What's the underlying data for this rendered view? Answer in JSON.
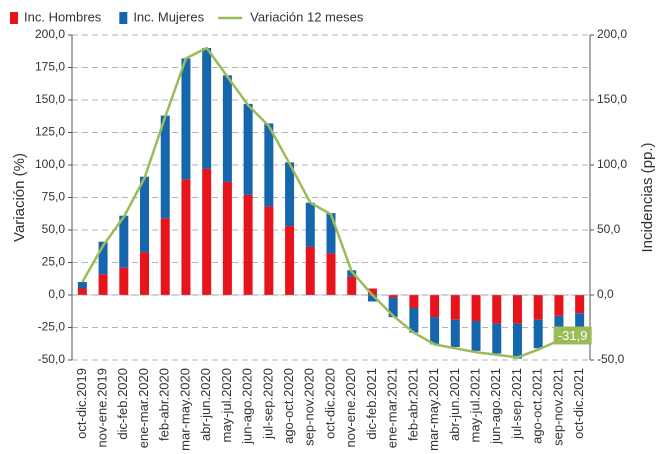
{
  "chart_data": {
    "type": "bar-line",
    "y_label": "Variación (%)",
    "y2_label": "Incidencias (pp.)",
    "categories": [
      "oct-dic.2019",
      "nov-ene.2019",
      "dic-feb.2020",
      "ene-mar.2020",
      "feb-abr.2020",
      "mar-may.2020",
      "abr-jun.2020",
      "may-jul.2020",
      "jun-ago.2020",
      "jul-sep.2020",
      "ago-oct.2020",
      "sep-nov.2020",
      "oct-dic.2020",
      "nov-ene.2020",
      "dic-feb.2021",
      "ene-mar.2021",
      "feb-abr.2021",
      "mar-may.2021",
      "abr-jun.2021",
      "may-jul.2021",
      "jun-ago.2021",
      "jul-sep.2021",
      "ago-oct.2021",
      "sep-nov.2021",
      "oct-dic.2021"
    ],
    "series": [
      {
        "name": "Inc. Hombres",
        "color": "#e8141c",
        "axis": "y2",
        "kind": "bar",
        "values": [
          5,
          16,
          21,
          33,
          59,
          89,
          97,
          87,
          77,
          68,
          53,
          37,
          32,
          14,
          5,
          -2,
          -10,
          -17,
          -19,
          -20,
          -22,
          -22,
          -19,
          -16,
          -14
        ]
      },
      {
        "name": "Inc. Mujeres",
        "color": "#1666ae",
        "axis": "y2",
        "kind": "bar",
        "values": [
          5,
          25,
          40,
          58,
          79,
          93,
          93,
          82,
          70,
          64,
          49,
          34,
          31,
          5,
          -5,
          -15,
          -19,
          -21,
          -21,
          -23,
          -23,
          -27,
          -22,
          -15,
          -17
        ]
      },
      {
        "name": "Variación 12 meses",
        "color": "#9bbb59",
        "axis": "y",
        "kind": "line",
        "values": [
          10,
          38,
          60,
          90,
          137,
          182,
          190,
          168,
          146,
          130,
          101,
          71,
          62,
          18,
          0,
          -16,
          -29,
          -38,
          -41,
          -44,
          -46,
          -48,
          -42,
          -35,
          -31.9
        ],
        "value_labels": [
          null,
          null,
          null,
          null,
          null,
          null,
          null,
          null,
          null,
          null,
          null,
          null,
          null,
          null,
          null,
          null,
          null,
          null,
          null,
          null,
          null,
          null,
          null,
          null,
          "-31,9"
        ]
      }
    ],
    "ylim": [
      -50,
      200
    ],
    "yticks": [
      {
        "value": -50,
        "label": "-50,0"
      },
      {
        "value": -25,
        "label": "-25,0"
      },
      {
        "value": 0,
        "label": "0,0"
      },
      {
        "value": 25,
        "label": "25,0"
      },
      {
        "value": 50,
        "label": "50,0"
      },
      {
        "value": 75,
        "label": "75,0"
      },
      {
        "value": 100,
        "label": "100,0"
      },
      {
        "value": 125,
        "label": "125,0"
      },
      {
        "value": 150,
        "label": "150,0"
      },
      {
        "value": 175,
        "label": "175,0"
      },
      {
        "value": 200,
        "label": "200,0"
      }
    ],
    "y2lim": [
      -50,
      200
    ],
    "y2ticks": [
      {
        "value": -50,
        "label": "-50,0"
      },
      {
        "value": 0,
        "label": "0,0"
      },
      {
        "value": 50,
        "label": "50,0"
      },
      {
        "value": 100,
        "label": "100,0"
      },
      {
        "value": 150,
        "label": "150,0"
      },
      {
        "value": 200,
        "label": "200,0"
      }
    ],
    "grid": true
  }
}
